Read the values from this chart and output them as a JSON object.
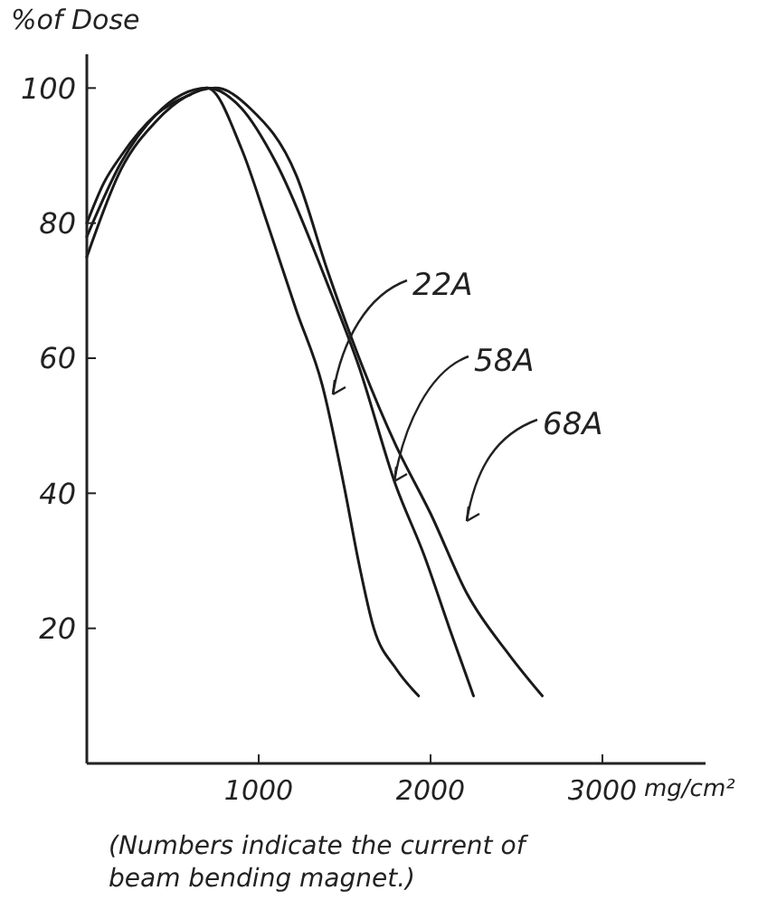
{
  "chart_data": {
    "type": "line",
    "ylabel": "%of Dose",
    "xlabel": "mg/cm²",
    "xlim": [
      0,
      3600
    ],
    "ylim": [
      0,
      105
    ],
    "xticks": [
      1000,
      2000,
      3000
    ],
    "yticks": [
      20,
      40,
      60,
      80,
      100
    ],
    "grid": false,
    "line_style": "solid",
    "series": [
      {
        "name": "22A",
        "color": "#1a1a1a",
        "x": [
          0,
          100,
          200,
          400,
          600,
          700,
          900,
          1050,
          1220,
          1370,
          1505,
          1580,
          1670,
          1800,
          1930
        ],
        "values": [
          80,
          86,
          90,
          96,
          99,
          100,
          91,
          80,
          67,
          56,
          40,
          30,
          20,
          14,
          10
        ]
      },
      {
        "name": "58A",
        "color": "#1a1a1a",
        "x": [
          0,
          200,
          400,
          700,
          900,
          1100,
          1400,
          1580,
          1800,
          1960,
          2110,
          2250
        ],
        "values": [
          78,
          89,
          96,
          100,
          97,
          89,
          71,
          59,
          41,
          31,
          20,
          10
        ]
      },
      {
        "name": "68A",
        "color": "#1a1a1a",
        "x": [
          0,
          200,
          400,
          750,
          950,
          1220,
          1400,
          1600,
          1800,
          2000,
          2215,
          2460,
          2650
        ],
        "values": [
          75,
          88,
          95,
          100,
          97,
          87,
          73,
          59,
          47,
          37,
          25,
          16,
          10
        ]
      }
    ],
    "annotations": [
      "(Numbers indicate the current of beam bending magnet.)"
    ]
  }
}
